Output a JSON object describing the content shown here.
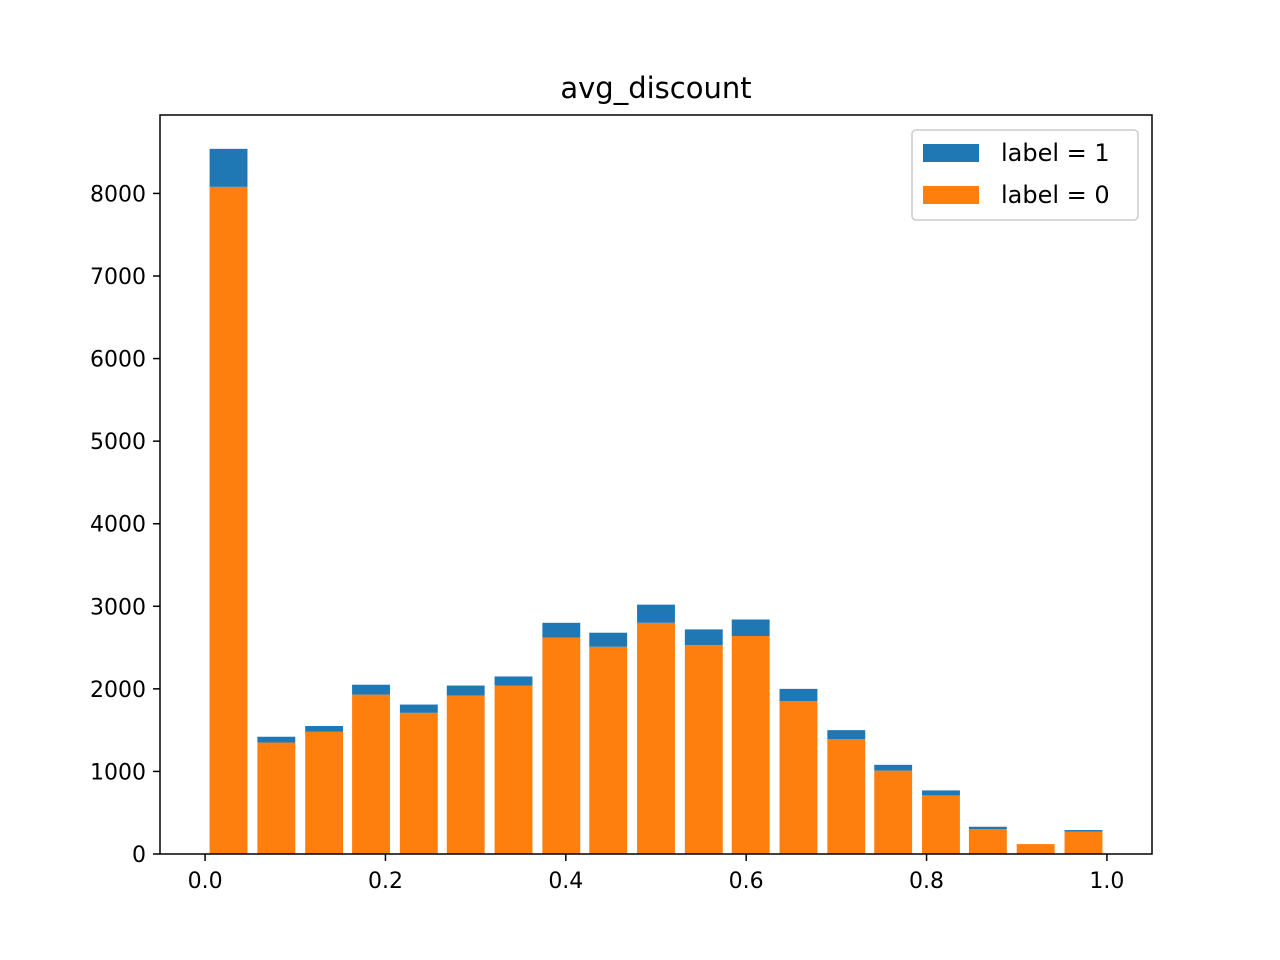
{
  "chart_data": {
    "type": "bar",
    "stacked": true,
    "title": "avg_discount",
    "xlabel": "",
    "ylabel": "",
    "xlim": [
      -0.05,
      1.05
    ],
    "ylim": [
      0,
      8950
    ],
    "xticks": [
      0.0,
      0.2,
      0.4,
      0.6,
      0.8,
      1.0
    ],
    "xtick_labels": [
      "0.0",
      "0.2",
      "0.4",
      "0.6",
      "0.8",
      "1.0"
    ],
    "yticks": [
      0,
      1000,
      2000,
      3000,
      4000,
      5000,
      6000,
      7000,
      8000
    ],
    "ytick_labels": [
      "0",
      "1000",
      "2000",
      "3000",
      "4000",
      "5000",
      "6000",
      "7000",
      "8000"
    ],
    "bin_width": 0.0526,
    "bar_width": 0.042,
    "x": [
      0.026,
      0.079,
      0.132,
      0.184,
      0.237,
      0.289,
      0.342,
      0.395,
      0.447,
      0.5,
      0.553,
      0.605,
      0.658,
      0.711,
      0.763,
      0.816,
      0.868,
      0.921,
      0.974
    ],
    "grid": false,
    "legend_position": "top-right",
    "series": [
      {
        "name": "label = 0",
        "color": "#ff7f0e",
        "values": [
          8080,
          1350,
          1480,
          1930,
          1710,
          1920,
          2040,
          2620,
          2510,
          2800,
          2530,
          2640,
          1850,
          1390,
          1010,
          710,
          300,
          120,
          270
        ]
      },
      {
        "name": "label = 1",
        "color": "#1f77b4",
        "values": [
          460,
          70,
          70,
          120,
          100,
          120,
          110,
          180,
          170,
          220,
          190,
          200,
          150,
          110,
          70,
          60,
          30,
          0,
          20
        ]
      }
    ]
  }
}
